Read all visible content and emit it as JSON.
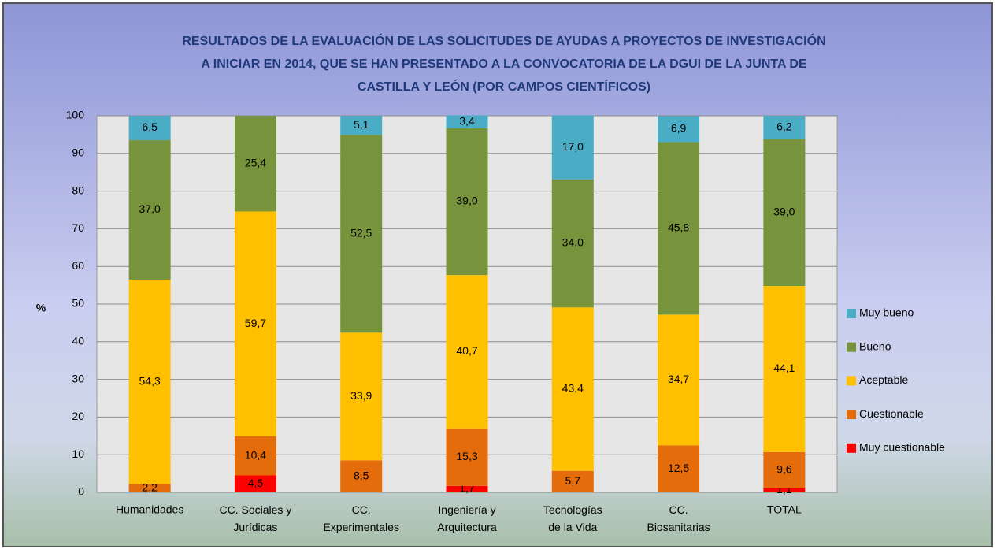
{
  "chart_data": {
    "type": "stacked_bar",
    "title": "RESULTADOS DE LA EVALUACIÓN  DE LAS SOLICITUDES DE AYUDAS A PROYECTOS DE INVESTIGACIÓN\nA INICIAR EN 2014, QUE SE HAN PRESENTADO  A LA CONVOCATORIA DE LA DGUI DE LA JUNTA DE\nCASTILLA Y LEÓN (POR CAMPOS CIENTÍFICOS)",
    "y_label": "%",
    "categories": [
      "Humanidades",
      "CC. Sociales y\nJurídicas",
      "CC.\nExperimentales",
      "Ingeniería y\nArquitectura",
      "Tecnologías\nde la Vida",
      "CC.\nBiosanitarias",
      "TOTAL"
    ],
    "series": [
      {
        "name": "Muy cuestionable",
        "color": "#ff0000",
        "values": [
          null,
          4.5,
          null,
          1.7,
          null,
          null,
          1.1
        ],
        "value_labels": [
          null,
          "4,5",
          null,
          "1,7",
          null,
          null,
          "1,1"
        ]
      },
      {
        "name": "Cuestionable",
        "color": "#e46c0a",
        "values": [
          2.2,
          10.4,
          8.5,
          15.3,
          5.7,
          12.5,
          9.6
        ],
        "value_labels": [
          "2,2",
          "10,4",
          "8,5",
          "15,3",
          "5,7",
          "12,5",
          "9,6"
        ]
      },
      {
        "name": "Aceptable",
        "color": "#ffc000",
        "values": [
          54.3,
          59.7,
          33.9,
          40.7,
          43.4,
          34.7,
          44.1
        ],
        "value_labels": [
          "54,3",
          "59,7",
          "33,9",
          "40,7",
          "43,4",
          "34,7",
          "44,1"
        ]
      },
      {
        "name": "Bueno",
        "color": "#77933c",
        "values": [
          37.0,
          25.4,
          52.5,
          39.0,
          34.0,
          45.8,
          39.0
        ],
        "value_labels": [
          "37,0",
          "25,4",
          "52,5",
          "39,0",
          "34,0",
          "45,8",
          "39,0"
        ]
      },
      {
        "name": "Muy bueno",
        "color": "#4bacc6",
        "values": [
          6.5,
          null,
          5.1,
          3.4,
          17.0,
          6.9,
          6.2
        ],
        "value_labels": [
          "6,5",
          null,
          "5,1",
          "3,4",
          "17,0",
          "6,9",
          "6,2"
        ]
      }
    ],
    "ylim": [
      0,
      100
    ],
    "yticks": [
      0,
      10,
      20,
      30,
      40,
      50,
      60,
      70,
      80,
      90,
      100
    ],
    "grid": true,
    "legend": "right"
  }
}
